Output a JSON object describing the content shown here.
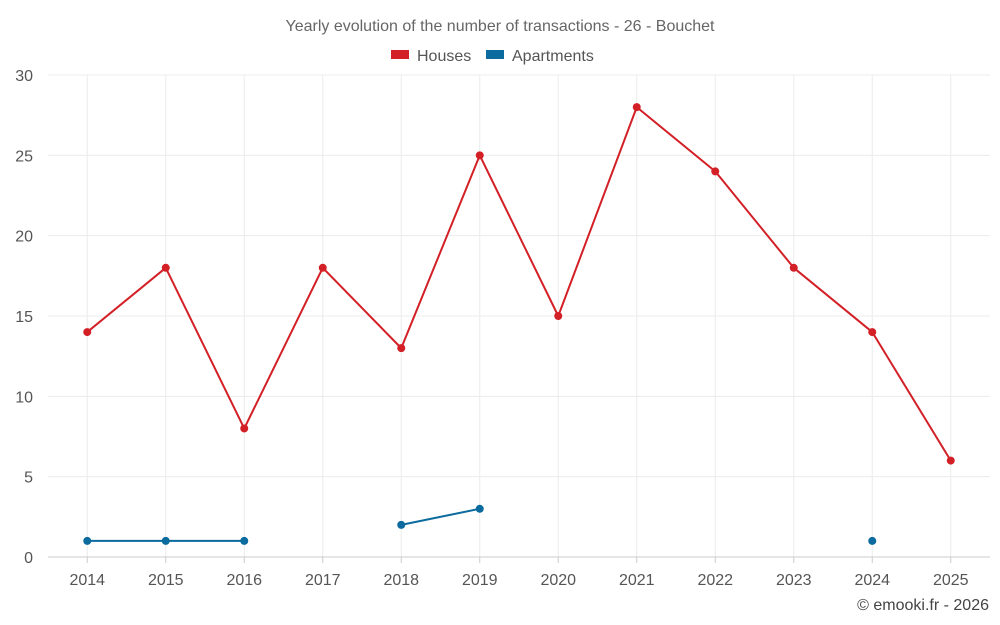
{
  "chart_data": {
    "type": "line",
    "title": "Yearly evolution of the number of transactions - 26 - Bouchet",
    "categories": [
      "2014",
      "2015",
      "2016",
      "2017",
      "2018",
      "2019",
      "2020",
      "2021",
      "2022",
      "2023",
      "2024",
      "2025"
    ],
    "ylim": [
      0,
      30
    ],
    "yticks": [
      0,
      5,
      10,
      15,
      20,
      25,
      30
    ],
    "series": [
      {
        "name": "Houses",
        "color": "#d32027",
        "values": [
          14,
          18,
          8,
          18,
          13,
          25,
          15,
          28,
          24,
          18,
          14,
          6
        ]
      },
      {
        "name": "Apartments",
        "color": "#0b6a9e",
        "values": [
          1,
          1,
          1,
          null,
          2,
          3,
          null,
          null,
          null,
          null,
          1,
          null
        ]
      }
    ],
    "legend_position": "top-center",
    "grid": true,
    "credit": "© emooki.fr - 2026"
  }
}
